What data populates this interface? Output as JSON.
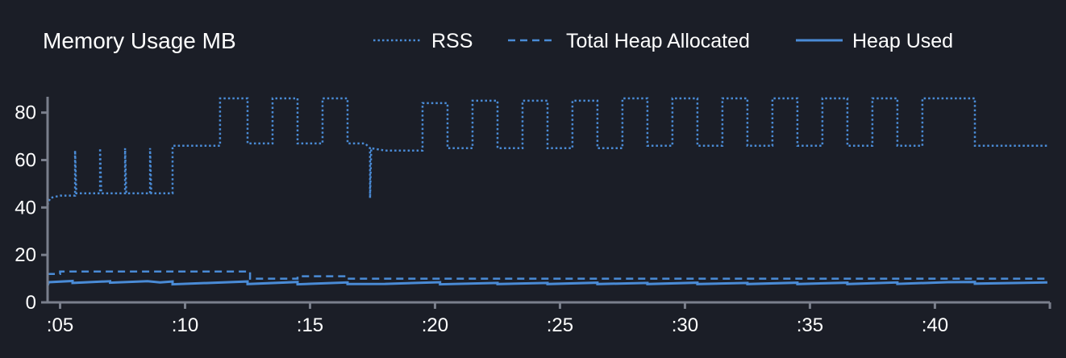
{
  "chart_data": {
    "type": "line",
    "title": "Memory Usage MB",
    "xlabel": "",
    "ylabel": "",
    "xlim": [
      4.5,
      44.6
    ],
    "ylim": [
      0,
      86
    ],
    "x_ticks": [
      {
        "value": 5,
        "label": ":05"
      },
      {
        "value": 10,
        "label": ":10"
      },
      {
        "value": 15,
        "label": ":15"
      },
      {
        "value": 20,
        "label": ":20"
      },
      {
        "value": 25,
        "label": ":25"
      },
      {
        "value": 30,
        "label": ":30"
      },
      {
        "value": 35,
        "label": ":35"
      },
      {
        "value": 40,
        "label": ":40"
      }
    ],
    "y_ticks": [
      0,
      20,
      40,
      60,
      80
    ],
    "grid": false,
    "legend_position": "top",
    "series": [
      {
        "name": "RSS",
        "style": "dotted",
        "color": "#4a8bd6",
        "points": [
          [
            4.5,
            41
          ],
          [
            4.6,
            44
          ],
          [
            5.0,
            45
          ],
          [
            5.6,
            45
          ],
          [
            5.6,
            64
          ],
          [
            5.65,
            46
          ],
          [
            6.6,
            46
          ],
          [
            6.6,
            65
          ],
          [
            6.65,
            46
          ],
          [
            7.6,
            46
          ],
          [
            7.6,
            65
          ],
          [
            7.65,
            46
          ],
          [
            8.6,
            46
          ],
          [
            8.6,
            65
          ],
          [
            8.65,
            46
          ],
          [
            9.5,
            46
          ],
          [
            9.5,
            66
          ],
          [
            11.4,
            66
          ],
          [
            11.4,
            86
          ],
          [
            12.5,
            86
          ],
          [
            12.5,
            67
          ],
          [
            13.5,
            67
          ],
          [
            13.5,
            86
          ],
          [
            14.5,
            86
          ],
          [
            14.5,
            67
          ],
          [
            15.5,
            67
          ],
          [
            15.5,
            86
          ],
          [
            16.5,
            86
          ],
          [
            16.5,
            67
          ],
          [
            17.2,
            67
          ],
          [
            17.4,
            65
          ],
          [
            17.4,
            44
          ],
          [
            17.45,
            65
          ],
          [
            18.0,
            64
          ],
          [
            19.5,
            64
          ],
          [
            19.5,
            84
          ],
          [
            20.5,
            84
          ],
          [
            20.5,
            65
          ],
          [
            21.5,
            65
          ],
          [
            21.5,
            85
          ],
          [
            22.5,
            85
          ],
          [
            22.5,
            65
          ],
          [
            23.5,
            65
          ],
          [
            23.5,
            85
          ],
          [
            24.5,
            85
          ],
          [
            24.5,
            65
          ],
          [
            25.5,
            65
          ],
          [
            25.5,
            85
          ],
          [
            26.5,
            85
          ],
          [
            26.5,
            65
          ],
          [
            27.5,
            65
          ],
          [
            27.5,
            86
          ],
          [
            28.5,
            86
          ],
          [
            28.5,
            66
          ],
          [
            29.5,
            66
          ],
          [
            29.5,
            86
          ],
          [
            30.5,
            86
          ],
          [
            30.5,
            66
          ],
          [
            31.5,
            66
          ],
          [
            31.5,
            86
          ],
          [
            32.5,
            86
          ],
          [
            32.5,
            66
          ],
          [
            33.5,
            66
          ],
          [
            33.5,
            86
          ],
          [
            34.5,
            86
          ],
          [
            34.5,
            66
          ],
          [
            35.5,
            66
          ],
          [
            35.5,
            86
          ],
          [
            36.5,
            86
          ],
          [
            36.5,
            66
          ],
          [
            37.5,
            66
          ],
          [
            37.5,
            86
          ],
          [
            38.5,
            86
          ],
          [
            38.5,
            66
          ],
          [
            39.5,
            66
          ],
          [
            39.5,
            86
          ],
          [
            41.6,
            86
          ],
          [
            41.6,
            66
          ],
          [
            44.5,
            66
          ]
        ]
      },
      {
        "name": "Total Heap Allocated",
        "style": "dashed",
        "color": "#4a8bd6",
        "points": [
          [
            4.5,
            12
          ],
          [
            5.0,
            12
          ],
          [
            5.0,
            13
          ],
          [
            12.6,
            13
          ],
          [
            12.6,
            10
          ],
          [
            14.5,
            10
          ],
          [
            14.5,
            11
          ],
          [
            16.5,
            11
          ],
          [
            16.5,
            10
          ],
          [
            44.5,
            10
          ]
        ]
      },
      {
        "name": "Heap Used",
        "style": "solid",
        "color": "#4a8bd6",
        "points": [
          [
            4.5,
            7
          ],
          [
            4.55,
            8.5
          ],
          [
            5.5,
            9
          ],
          [
            5.5,
            8.2
          ],
          [
            7.0,
            8.9
          ],
          [
            7.0,
            8.3
          ],
          [
            8.5,
            8.9
          ],
          [
            9.0,
            8.4
          ],
          [
            9.5,
            8.8
          ],
          [
            9.5,
            7.6
          ],
          [
            12.5,
            8.8
          ],
          [
            12.5,
            7.7
          ],
          [
            14.5,
            8.6
          ],
          [
            14.5,
            7.6
          ],
          [
            16.5,
            8.4
          ],
          [
            16.5,
            7.7
          ],
          [
            18.0,
            7.8
          ],
          [
            19.5,
            8.3
          ],
          [
            20.2,
            8.5
          ],
          [
            20.2,
            7.6
          ],
          [
            22.5,
            8.2
          ],
          [
            22.5,
            7.7
          ],
          [
            24.5,
            8.2
          ],
          [
            24.5,
            7.7
          ],
          [
            26.5,
            8.3
          ],
          [
            26.5,
            7.7
          ],
          [
            28.5,
            8.2
          ],
          [
            28.5,
            7.7
          ],
          [
            30.5,
            8.3
          ],
          [
            30.5,
            7.7
          ],
          [
            32.5,
            8.2
          ],
          [
            32.5,
            7.7
          ],
          [
            34.5,
            8.3
          ],
          [
            34.5,
            7.7
          ],
          [
            36.5,
            8.3
          ],
          [
            36.5,
            7.7
          ],
          [
            38.5,
            8.4
          ],
          [
            38.5,
            7.8
          ],
          [
            40.5,
            8.5
          ],
          [
            41.6,
            8.6
          ],
          [
            41.6,
            7.9
          ],
          [
            44.5,
            8.4
          ]
        ]
      }
    ]
  }
}
